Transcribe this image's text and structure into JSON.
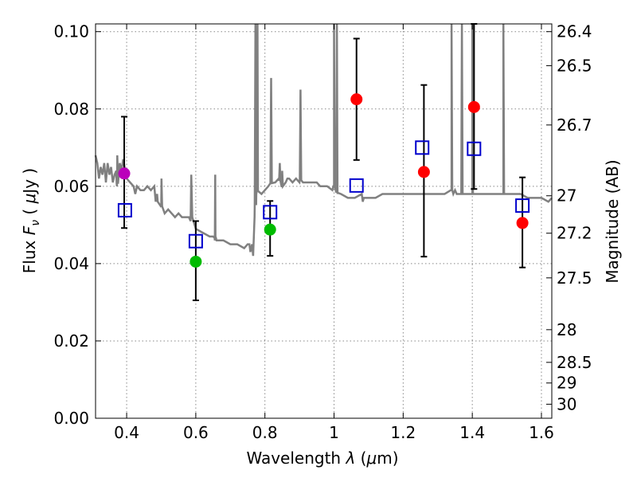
{
  "chart_data": {
    "type": "scatter",
    "xlabel": "Wavelength  λ (μm)",
    "ylabel": "Flux  F_ν  ( μJy )",
    "ylabel_parts": {
      "pre": "Flux  ",
      "var": "F",
      "sub": "ν",
      "post": "  ( ",
      "mu": "μ",
      "unit": "Jy )"
    },
    "xlabel_parts": {
      "pre": "Wavelength  ",
      "var": "λ",
      "post": " (",
      "mu": "μ",
      "unit": "m)"
    },
    "y2label": "Magnitude (AB)",
    "xlim": [
      0.31,
      1.63
    ],
    "ylim": [
      0.0,
      0.102
    ],
    "grid": true,
    "x_ticks": [
      0.4,
      0.6,
      0.8,
      1.0,
      1.2,
      1.4,
      1.6
    ],
    "x_tick_labels": [
      "0.4",
      "0.6",
      "0.8",
      "1",
      "1.2",
      "1.4",
      "1.6"
    ],
    "y_ticks": [
      0.0,
      0.02,
      0.04,
      0.06,
      0.08,
      0.1
    ],
    "y_tick_labels": [
      "0.00",
      "0.02",
      "0.04",
      "0.06",
      "0.08",
      "0.10"
    ],
    "y2_ticks": [
      26.4,
      26.5,
      26.7,
      27,
      27.2,
      27.5,
      28,
      28.5,
      29,
      30
    ],
    "y2_tick_labels": [
      "26.4",
      "26.5",
      "26.7",
      "27",
      "27.2",
      "27.5",
      "28",
      "28.5",
      "29",
      "30"
    ],
    "colors": {
      "model": "#808080",
      "model_points": "#0000cc",
      "error_bars": "#000000",
      "purple": "#bb00bb",
      "green": "#00bb00",
      "red": "#ff0000",
      "grid": "#888888"
    },
    "series": [
      {
        "name": "model_spectrum",
        "kind": "line",
        "x": [
          0.31,
          0.315,
          0.32,
          0.325,
          0.33,
          0.335,
          0.34,
          0.345,
          0.35,
          0.355,
          0.36,
          0.365,
          0.37,
          0.372,
          0.375,
          0.38,
          0.385,
          0.39,
          0.4,
          0.41,
          0.42,
          0.425,
          0.43,
          0.44,
          0.45,
          0.46,
          0.47,
          0.48,
          0.484,
          0.488,
          0.49,
          0.5,
          0.51,
          0.52,
          0.53,
          0.54,
          0.55,
          0.56,
          0.57,
          0.58,
          0.585,
          0.587,
          0.59,
          0.6,
          0.62,
          0.64,
          0.65,
          0.655,
          0.657,
          0.66,
          0.68,
          0.7,
          0.72,
          0.74,
          0.75,
          0.755,
          0.758,
          0.76,
          0.763,
          0.766,
          0.77,
          0.775,
          0.78,
          0.79,
          0.8,
          0.81,
          0.82,
          0.83,
          0.84,
          0.85,
          0.86,
          0.865,
          0.87,
          0.88,
          0.89,
          0.9,
          0.905,
          0.91,
          0.92,
          0.94,
          0.95,
          0.96,
          0.98,
          0.995,
          1.0,
          1.01,
          1.02,
          1.04,
          1.06,
          1.08,
          1.083,
          1.086,
          1.09,
          1.1,
          1.12,
          1.14,
          1.16,
          1.18,
          1.2,
          1.22,
          1.24,
          1.26,
          1.28,
          1.3,
          1.32,
          1.34,
          1.345,
          1.35,
          1.355,
          1.36,
          1.38,
          1.4,
          1.42,
          1.44,
          1.46,
          1.48,
          1.485,
          1.49,
          1.5,
          1.52,
          1.54,
          1.56,
          1.58,
          1.6,
          1.62,
          1.63
        ],
        "y": [
          0.068,
          0.066,
          0.062,
          0.065,
          0.063,
          0.066,
          0.061,
          0.066,
          0.063,
          0.065,
          0.061,
          0.063,
          0.064,
          0.06,
          0.062,
          0.066,
          0.064,
          0.067,
          0.062,
          0.061,
          0.06,
          0.058,
          0.06,
          0.059,
          0.059,
          0.06,
          0.059,
          0.06,
          0.056,
          0.058,
          0.056,
          0.055,
          0.053,
          0.054,
          0.053,
          0.052,
          0.053,
          0.052,
          0.052,
          0.052,
          0.051,
          0.063,
          0.052,
          0.049,
          0.048,
          0.047,
          0.047,
          0.046,
          0.047,
          0.046,
          0.046,
          0.045,
          0.045,
          0.044,
          0.045,
          0.045,
          0.043,
          0.044,
          0.045,
          0.042,
          0.052,
          0.058,
          0.059,
          0.058,
          0.059,
          0.06,
          0.061,
          0.061,
          0.062,
          0.06,
          0.061,
          0.062,
          0.062,
          0.061,
          0.062,
          0.061,
          0.062,
          0.061,
          0.061,
          0.061,
          0.061,
          0.06,
          0.06,
          0.059,
          0.06,
          0.058,
          0.058,
          0.057,
          0.057,
          0.058,
          0.056,
          0.057,
          0.057,
          0.057,
          0.057,
          0.058,
          0.058,
          0.058,
          0.058,
          0.058,
          0.058,
          0.058,
          0.058,
          0.058,
          0.058,
          0.059,
          0.058,
          0.059,
          0.058,
          0.058,
          0.058,
          0.058,
          0.058,
          0.058,
          0.058,
          0.058,
          0.058,
          0.058,
          0.058,
          0.058,
          0.058,
          0.057,
          0.057,
          0.057,
          0.056,
          0.057
        ]
      },
      {
        "name": "emission_lines",
        "kind": "spikes",
        "points": [
          {
            "x": 0.373,
            "peak": 0.068
          },
          {
            "x": 0.5007,
            "peak": 0.062
          },
          {
            "x": 0.6563,
            "peak": 0.063
          },
          {
            "x": 0.7726,
            "peak": 0.102
          },
          {
            "x": 0.7786,
            "peak": 0.102
          },
          {
            "x": 0.818,
            "peak": 0.088
          },
          {
            "x": 0.843,
            "peak": 0.066
          },
          {
            "x": 0.85,
            "peak": 0.064
          },
          {
            "x": 0.903,
            "peak": 0.085
          },
          {
            "x": 1.0,
            "peak": 0.102
          },
          {
            "x": 1.0083,
            "peak": 0.102
          },
          {
            "x": 1.34,
            "peak": 0.102
          },
          {
            "x": 1.37,
            "peak": 0.102
          },
          {
            "x": 1.4,
            "peak": 0.102
          },
          {
            "x": 1.49,
            "peak": 0.102
          }
        ]
      },
      {
        "name": "model_photometry",
        "kind": "open_square",
        "color": "#0000cc",
        "x": [
          0.395,
          0.6,
          0.815,
          1.065,
          1.255,
          1.405,
          1.545
        ],
        "y": [
          0.0538,
          0.0458,
          0.0533,
          0.0602,
          0.07,
          0.0697,
          0.055
        ]
      },
      {
        "name": "observed_photometry",
        "kind": "filled_circle_with_errorbars",
        "x": [
          0.393,
          0.6,
          0.815,
          1.065,
          1.26,
          1.405,
          1.545
        ],
        "y": [
          0.0633,
          0.0405,
          0.0488,
          0.0825,
          0.0637,
          0.0805,
          0.0505
        ],
        "yerr_low": [
          0.0492,
          0.0305,
          0.042,
          0.0668,
          0.0418,
          0.0593,
          0.039
        ],
        "yerr_high": [
          0.078,
          0.051,
          0.0562,
          0.0982,
          0.0862,
          0.102,
          0.0623
        ],
        "colors": [
          "#bb00bb",
          "#00bb00",
          "#00bb00",
          "#ff0000",
          "#ff0000",
          "#ff0000",
          "#ff0000"
        ]
      }
    ]
  }
}
